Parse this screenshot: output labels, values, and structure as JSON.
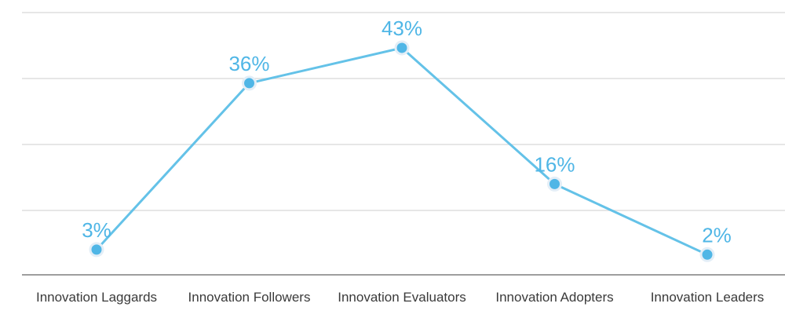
{
  "chart_data": {
    "type": "line",
    "categories": [
      "Innovation Laggards",
      "Innovation Followers",
      "Innovation Evaluators",
      "Innovation Adopters",
      "Innovation Leaders"
    ],
    "values": [
      3,
      36,
      43,
      16,
      2
    ],
    "data_labels": [
      "3%",
      "36%",
      "43%",
      "16%",
      "2%"
    ],
    "ylim": [
      -2,
      50
    ],
    "y_unit": "%",
    "grid": true,
    "legend": "none",
    "line_color": "#64c2e8",
    "point_color": "#4fb6e6",
    "label_color": "#4fb6e6"
  }
}
